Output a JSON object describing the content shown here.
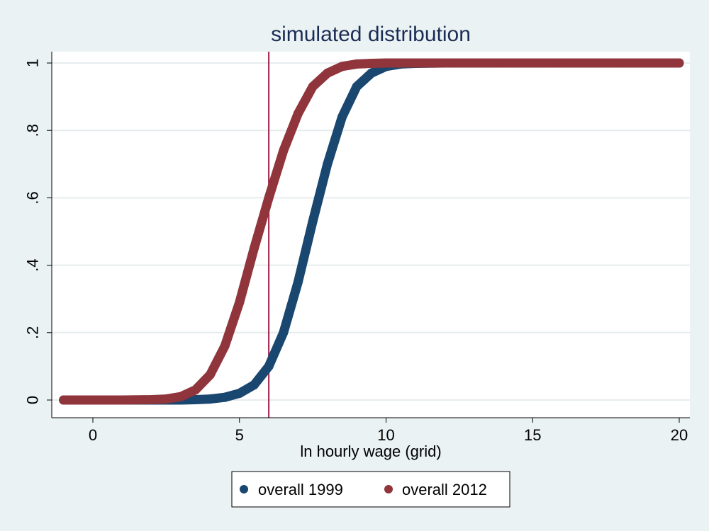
{
  "chart_data": {
    "type": "scatter",
    "title": "simulated distribution",
    "xlabel": "ln hourly wage (grid)",
    "ylabel": "",
    "xlim": [
      -1.1,
      20.0
    ],
    "ylim": [
      0,
      1
    ],
    "xticks": [
      0,
      5,
      10,
      15,
      20
    ],
    "xtick_labels": [
      "0",
      "5",
      "10",
      "15",
      "20"
    ],
    "yticks": [
      0,
      0.2,
      0.4,
      0.6,
      0.8,
      1
    ],
    "ytick_labels": [
      "0",
      ".2",
      ".4",
      ".6",
      ".8",
      "1"
    ],
    "grid": true,
    "legend_position": "bottom",
    "reference_line": {
      "axis": "x",
      "value": 6.0,
      "color": "#a0224a"
    },
    "series": [
      {
        "name": "overall 1999",
        "color": "#1a476f",
        "x": [
          -1,
          0,
          1,
          2,
          3,
          3.5,
          4,
          4.5,
          5,
          5.5,
          6,
          6.5,
          7,
          7.5,
          8,
          8.5,
          9,
          9.5,
          10,
          10.5,
          11,
          12,
          14,
          16,
          18,
          20
        ],
        "y": [
          0,
          0,
          0,
          0,
          0,
          0.001,
          0.003,
          0.008,
          0.02,
          0.045,
          0.1,
          0.2,
          0.35,
          0.53,
          0.7,
          0.84,
          0.93,
          0.97,
          0.99,
          0.997,
          0.999,
          1,
          1,
          1,
          1,
          1
        ]
      },
      {
        "name": "overall 2012",
        "color": "#90353b",
        "x": [
          -1,
          0,
          1,
          2,
          2.5,
          3,
          3.5,
          4,
          4.5,
          5,
          5.5,
          6,
          6.5,
          7,
          7.5,
          8,
          8.5,
          9,
          9.5,
          10,
          11,
          12,
          14,
          16,
          18,
          20
        ],
        "y": [
          0,
          0,
          0,
          0.001,
          0.003,
          0.01,
          0.03,
          0.075,
          0.16,
          0.29,
          0.45,
          0.6,
          0.74,
          0.85,
          0.93,
          0.97,
          0.99,
          0.997,
          0.999,
          1,
          1,
          1,
          1,
          1,
          1,
          1
        ]
      }
    ]
  }
}
